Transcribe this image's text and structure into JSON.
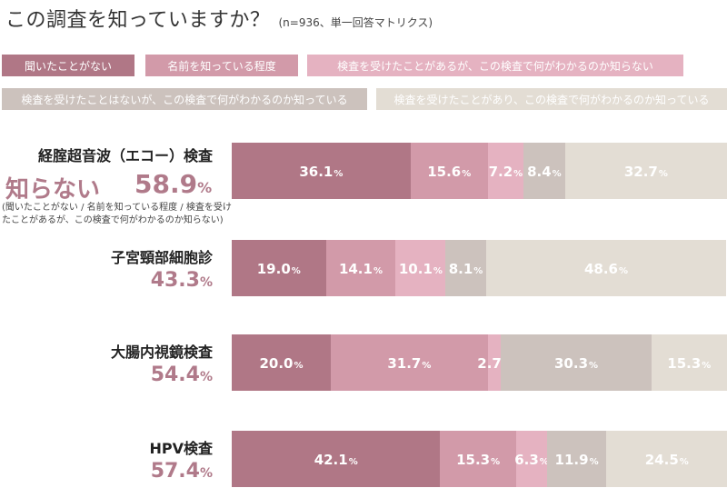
{
  "title": "この調査を知っていますか？",
  "note": "(n=936、単一回答マトリクス)",
  "legend": [
    "聞いたことがない",
    "名前を知っている程度",
    "検査を受けたことがあるが、この検査で何がわかるのか知らない",
    "検査を受けたことはないが、この検査で何がわかるのか知っている",
    "検査を受けたことがあり、この検査で何がわかるのか知っている"
  ],
  "colors": [
    "#b07786",
    "#d29aa9",
    "#e5b2c1",
    "#ccc2bd",
    "#e3ddd4"
  ],
  "unit": "%",
  "highlight": {
    "label": "知らない",
    "footnote": "(聞いたことがない / 名前を知っている程度 / 検査を受けたことがあるが、この検査で何がわかるのか知らない)"
  },
  "rows": [
    {
      "name": "経腟超音波（エコー）検査",
      "unknown": "58.9"
    },
    {
      "name": "子宮頸部細胞診",
      "unknown": "43.3"
    },
    {
      "name": "大腸内視鏡検査",
      "unknown": "54.4"
    },
    {
      "name": "HPV検査",
      "unknown": "57.4"
    }
  ],
  "chart_data": {
    "type": "bar",
    "stacked": true,
    "orientation": "horizontal",
    "categories": [
      "経腟超音波（エコー）検査",
      "子宮頸部細胞診",
      "大腸内視鏡検査",
      "HPV検査"
    ],
    "series": [
      {
        "name": "聞いたことがない",
        "values": [
          36.1,
          19.0,
          20.0,
          42.1
        ]
      },
      {
        "name": "名前を知っている程度",
        "values": [
          15.6,
          14.1,
          31.7,
          15.3
        ]
      },
      {
        "name": "検査を受けたことがあるが、この検査で何がわかるのか知らない",
        "values": [
          7.2,
          10.1,
          2.7,
          6.3
        ]
      },
      {
        "name": "検査を受けたことはないが、この検査で何がわかるのか知っている",
        "values": [
          8.4,
          8.1,
          30.3,
          11.9
        ]
      },
      {
        "name": "検査を受けたことがあり、この検査で何がわかるのか知っている",
        "values": [
          32.7,
          48.6,
          15.3,
          24.5
        ]
      }
    ],
    "labels": [
      [
        "36.1",
        "15.6",
        "7.2",
        "8.4",
        "32.7"
      ],
      [
        "19.0",
        "14.1",
        "10.1",
        "8.1",
        "48.6"
      ],
      [
        "20.0",
        "31.7",
        "2.7",
        "30.3",
        "15.3"
      ],
      [
        "42.1",
        "15.3",
        "6.3",
        "11.9",
        "24.5"
      ]
    ]
  }
}
